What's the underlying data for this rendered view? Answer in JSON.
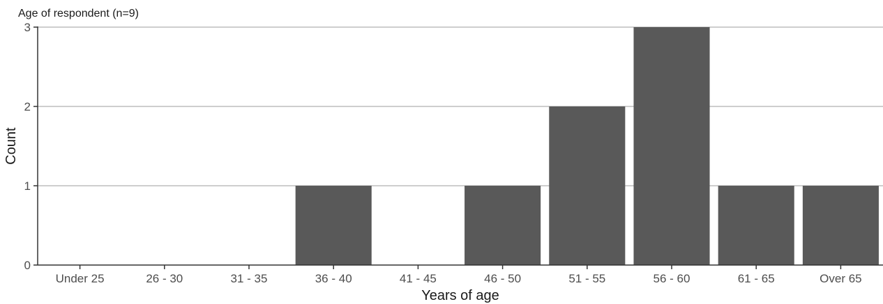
{
  "chart_data": {
    "type": "bar",
    "title": "Age of respondent (n=9)",
    "xlabel": "Years of age",
    "ylabel": "Count",
    "categories": [
      "Under 25",
      "26 - 30",
      "31 - 35",
      "36 - 40",
      "41 - 45",
      "46 - 50",
      "51 - 55",
      "56 - 60",
      "61 - 65",
      "Over 65"
    ],
    "values": [
      0,
      0,
      0,
      1,
      0,
      1,
      2,
      3,
      1,
      1
    ],
    "ylim": [
      0,
      3
    ],
    "yticks": [
      0,
      1,
      2,
      3
    ],
    "grid": true,
    "bar_color": "#595959",
    "grid_color": "#bdbdbd"
  }
}
